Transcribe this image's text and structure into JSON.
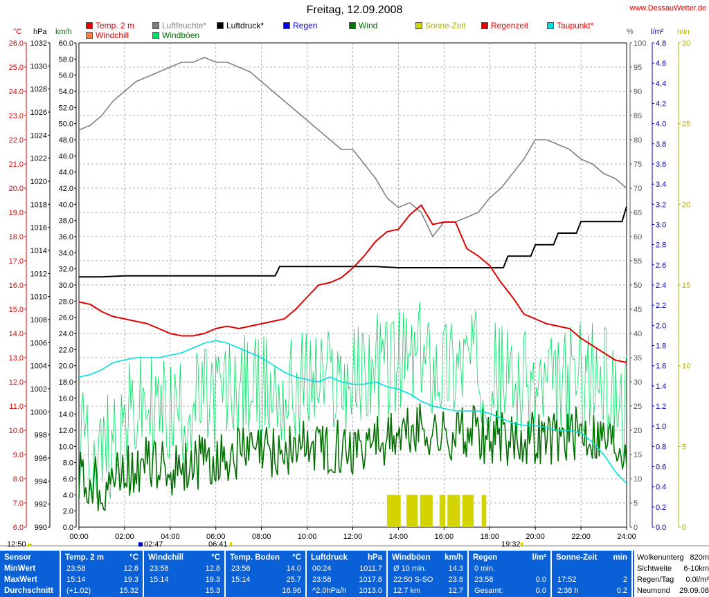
{
  "header": {
    "title": "Freitag, 12.09.2008",
    "site": "www.DessauWetter.de"
  },
  "legend": [
    {
      "label": "Temp. 2 m",
      "color": "#e00000"
    },
    {
      "label": "Luftfeuchte*",
      "color": "#808080"
    },
    {
      "label": "Luftdruck*",
      "color": "#000000"
    },
    {
      "label": "Regen",
      "color": "#0000e0"
    },
    {
      "label": "Wind",
      "color": "#007000"
    },
    {
      "label": "Sonne-Zeit",
      "color": "#d4d400"
    },
    {
      "label": "Regenzeit",
      "color": "#e00000"
    },
    {
      "label": "Taupunkt*",
      "color": "#00e0e0"
    },
    {
      "label": "Windchill",
      "color": "#ff8040"
    },
    {
      "label": "Windböen",
      "color": "#00e060"
    }
  ],
  "axis_units": {
    "temp": "°C",
    "pressure": "hPa",
    "speed": "km/h",
    "humidity": "%",
    "rain": "l/m²",
    "minutes": "min"
  },
  "time_markers": {
    "sunrise_start": "12:50",
    "moonrise": "02:47",
    "sunrise": "06:41",
    "sunset": "19:32"
  },
  "chart_data": {
    "type": "line",
    "x_ticks": [
      "00:00",
      "02:00",
      "04:00",
      "06:00",
      "08:00",
      "10:00",
      "12:00",
      "14:00",
      "16:00",
      "18:00",
      "20:00",
      "22:00",
      "24:00"
    ],
    "axes": {
      "temp": {
        "min": 6.0,
        "max": 26.0,
        "step": 1.0
      },
      "pressure": {
        "min": 990,
        "max": 1032,
        "step": 2
      },
      "speed": {
        "min": 0.0,
        "max": 60.0,
        "step": 2.0
      },
      "humidity": {
        "min": 0,
        "max": 100,
        "step": 5
      },
      "rain": {
        "min": 0.0,
        "max": 4.8,
        "step": 0.2
      },
      "sun_minutes": {
        "min": 0,
        "max": 30,
        "step": 5
      }
    },
    "series": [
      {
        "name": "Temp. 2 m",
        "axis": "temp",
        "color": "#e00000",
        "x": [
          0,
          0.5,
          1,
          1.5,
          2,
          2.5,
          3,
          3.5,
          4,
          4.5,
          5,
          5.5,
          6,
          6.5,
          7,
          7.5,
          8,
          8.5,
          9,
          9.5,
          10,
          10.5,
          11,
          11.5,
          12,
          12.5,
          13,
          13.5,
          14,
          14.5,
          15,
          15.5,
          16,
          16.5,
          17,
          17.5,
          18,
          18.5,
          19,
          19.5,
          20,
          20.5,
          21,
          21.5,
          22,
          22.5,
          23,
          23.5,
          24
        ],
        "values": [
          15.3,
          15.2,
          14.9,
          14.7,
          14.6,
          14.5,
          14.4,
          14.2,
          14.0,
          13.9,
          13.9,
          14.0,
          14.2,
          14.3,
          14.2,
          14.3,
          14.4,
          14.5,
          14.6,
          15.0,
          15.5,
          16.0,
          16.1,
          16.3,
          16.7,
          17.2,
          17.8,
          18.2,
          18.3,
          18.9,
          19.3,
          18.5,
          18.6,
          18.6,
          17.5,
          17.2,
          16.8,
          16.1,
          15.5,
          14.8,
          14.6,
          14.4,
          14.3,
          14.2,
          13.8,
          13.5,
          13.2,
          12.9,
          12.8
        ]
      },
      {
        "name": "Luftfeuchte*",
        "axis": "humidity",
        "color": "#808080",
        "x": [
          0,
          0.5,
          1,
          1.5,
          2,
          2.5,
          3,
          3.5,
          4,
          4.5,
          5,
          5.5,
          6,
          6.5,
          7,
          7.5,
          8,
          8.5,
          9,
          9.5,
          10,
          10.5,
          11,
          11.5,
          12,
          12.5,
          13,
          13.5,
          14,
          14.5,
          15,
          15.5,
          16,
          16.5,
          17,
          17.5,
          18,
          18.5,
          19,
          19.5,
          20,
          20.5,
          21,
          21.5,
          22,
          22.5,
          23,
          23.5,
          24
        ],
        "values": [
          82,
          83,
          85,
          88,
          90,
          92,
          93,
          94,
          95,
          96,
          96,
          97,
          96,
          96,
          95,
          94,
          92,
          90,
          88,
          86,
          84,
          82,
          80,
          78,
          78,
          75,
          72,
          68,
          66,
          67,
          65,
          60,
          63,
          63,
          64,
          65,
          68,
          70,
          73,
          76,
          80,
          80,
          79,
          78,
          76,
          75,
          73,
          72,
          70
        ]
      },
      {
        "name": "Luftdruck*",
        "axis": "pressure",
        "color": "#000000",
        "x": [
          0,
          1,
          2,
          3,
          4,
          5,
          6,
          7,
          8,
          8.6,
          8.8,
          9,
          10,
          11,
          12,
          13,
          14,
          15,
          16,
          17,
          18,
          18.6,
          18.8,
          19,
          19.8,
          20,
          20.8,
          21,
          21.8,
          22,
          23,
          23.8,
          24
        ],
        "values": [
          1011.7,
          1011.7,
          1011.8,
          1011.8,
          1011.8,
          1011.8,
          1011.8,
          1011.8,
          1011.8,
          1011.8,
          1012.6,
          1012.6,
          1012.6,
          1012.6,
          1012.6,
          1012.6,
          1012.5,
          1012.5,
          1012.5,
          1012.5,
          1012.5,
          1012.5,
          1013.5,
          1013.5,
          1013.5,
          1014.5,
          1014.5,
          1015.5,
          1015.5,
          1016.5,
          1016.5,
          1016.5,
          1017.8
        ]
      },
      {
        "name": "Taupunkt*",
        "axis": "temp",
        "color": "#00e0e0",
        "x": [
          0,
          0.5,
          1,
          1.5,
          2,
          2.5,
          3,
          3.5,
          4,
          4.5,
          5,
          5.5,
          6,
          6.5,
          7,
          7.5,
          8,
          8.5,
          9,
          9.5,
          10,
          10.5,
          11,
          11.5,
          12,
          12.5,
          13,
          13.5,
          14,
          14.5,
          15,
          15.5,
          16,
          16.5,
          17,
          17.5,
          18,
          18.5,
          19,
          19.5,
          20,
          20.5,
          21,
          21.5,
          22,
          22.5,
          23,
          23.5,
          24
        ],
        "values": [
          12.2,
          12.3,
          12.5,
          12.8,
          12.9,
          13.0,
          13.0,
          13.0,
          13.1,
          13.2,
          13.4,
          13.6,
          13.7,
          13.6,
          13.4,
          13.2,
          13.0,
          12.7,
          12.4,
          12.2,
          12.1,
          12.0,
          12.2,
          12.0,
          11.9,
          11.9,
          12.0,
          11.8,
          11.7,
          11.5,
          11.2,
          11.0,
          10.9,
          10.8,
          10.8,
          10.8,
          10.7,
          10.5,
          10.3,
          10.2,
          10.2,
          10.1,
          10.0,
          10.0,
          9.9,
          9.5,
          9.0,
          8.3,
          7.8
        ]
      },
      {
        "name": "Wind",
        "axis": "speed",
        "color": "#007000",
        "x": [
          0,
          1,
          2,
          3,
          4,
          5,
          6,
          7,
          8,
          9,
          10,
          11,
          12,
          13,
          14,
          15,
          16,
          17,
          18,
          19,
          20,
          21,
          22,
          23,
          24
        ],
        "values": [
          6,
          5,
          7,
          8,
          7,
          8,
          8,
          9,
          9,
          9,
          10,
          10,
          10,
          11,
          11,
          12,
          11,
          12,
          11,
          11,
          11,
          11,
          12,
          11,
          10
        ]
      },
      {
        "name": "Windböen",
        "axis": "speed",
        "color": "#00e060",
        "x": [
          0,
          1,
          2,
          3,
          4,
          5,
          6,
          7,
          8,
          9,
          10,
          11,
          12,
          13,
          14,
          15,
          16,
          17,
          18,
          19,
          20,
          21,
          22,
          23,
          24
        ],
        "values": [
          10,
          9,
          13,
          15,
          14,
          15,
          16,
          17,
          17,
          16,
          18,
          18,
          18,
          20,
          20,
          21,
          20,
          21,
          19,
          18,
          17,
          17,
          19,
          18,
          15
        ]
      }
    ],
    "sun_bars": [
      {
        "start": 13.5,
        "end": 14.1
      },
      {
        "start": 14.35,
        "end": 14.85
      },
      {
        "start": 14.95,
        "end": 15.5
      },
      {
        "start": 15.8,
        "end": 16.05
      },
      {
        "start": 16.15,
        "end": 16.7
      },
      {
        "start": 16.8,
        "end": 17.3
      },
      {
        "start": 17.65,
        "end": 17.85
      }
    ],
    "sun_bar_height_min": 3.3
  },
  "summary": {
    "row_labels": [
      "Sensor",
      "MinWert",
      "MaxWert",
      "Durchschnitt"
    ],
    "columns": [
      {
        "header": "Temp. 2 m",
        "unit": "°C",
        "rows": [
          [
            "23:58",
            "12.8"
          ],
          [
            "15:14",
            "19.3"
          ],
          [
            "(+1.02)",
            "15.32"
          ]
        ]
      },
      {
        "header": "Windchill",
        "unit": "°C",
        "rows": [
          [
            "23:58",
            "12.8"
          ],
          [
            "15:14",
            "19.3"
          ],
          [
            "",
            "15.3"
          ]
        ]
      },
      {
        "header": "Temp. Boden",
        "unit": "°C",
        "rows": [
          [
            "23:58",
            "14.0"
          ],
          [
            "15:14",
            "25.7"
          ],
          [
            "",
            "16.96"
          ]
        ]
      },
      {
        "header": "Luftdruck",
        "unit": "hPa",
        "rows": [
          [
            "00:24",
            "1011.7"
          ],
          [
            "23:58",
            "1017.8"
          ],
          [
            "^2.0hPa/h",
            "1013.0"
          ]
        ]
      },
      {
        "header": "Windböen",
        "unit": "km/h",
        "rows": [
          [
            "Ø 10 min.",
            "14.3"
          ],
          [
            "22:50   S-SO",
            "23.8"
          ],
          [
            "12.7 km",
            "12.7"
          ]
        ]
      },
      {
        "header": "Regen",
        "unit": "l/m²",
        "rows": [
          [
            "0 min.",
            ""
          ],
          [
            "23:58",
            "0.0"
          ],
          [
            "Gesamt:",
            "0.0"
          ]
        ]
      },
      {
        "header": "Sonne-Zeit",
        "unit": "min",
        "rows": [
          [
            "",
            ""
          ],
          [
            "17:52",
            "2"
          ],
          [
            "2:38 h",
            "0.2"
          ]
        ]
      }
    ],
    "extra": [
      {
        "label": "Wolkenuntergrenze",
        "short": "Wolkenunterg",
        "value": "820m"
      },
      {
        "label": "Sichtweite",
        "short": "Sichtweite",
        "value": "6-10km"
      },
      {
        "label": "Regen/Tag",
        "short": "Regen/Tag",
        "value": "0.0l/m²"
      },
      {
        "label": "Neumond",
        "short": "Neumond",
        "value": "29.09.08"
      }
    ]
  }
}
